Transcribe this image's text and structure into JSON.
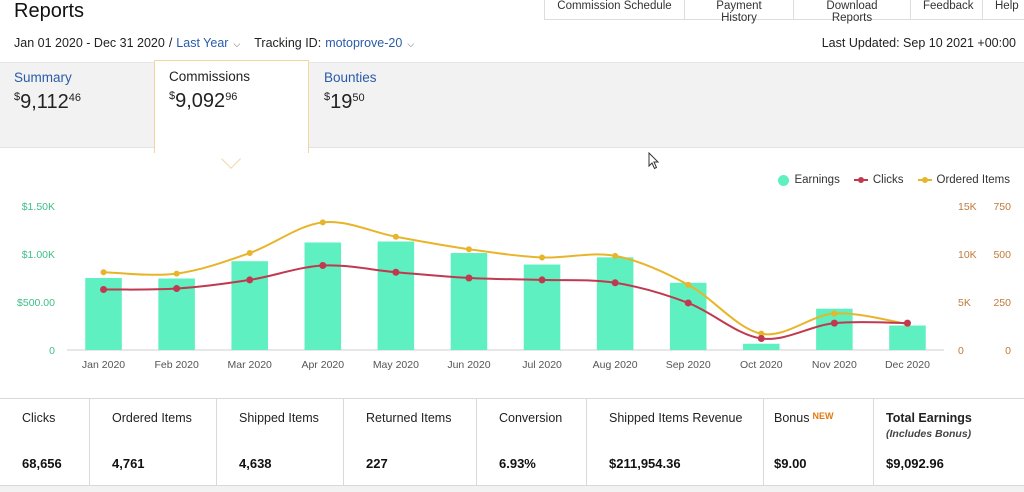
{
  "header": {
    "title": "Reports",
    "nav": [
      "Commission Schedule",
      "Payment History",
      "Download Reports",
      "Feedback",
      "Help"
    ]
  },
  "filters": {
    "date_range": "Jan 01 2020 - Dec 31 2020",
    "period": "Last Year",
    "tracking_label": "Tracking ID:",
    "tracking_id": "motoprove-20",
    "last_updated": "Last Updated: Sep 10 2021 +00:00"
  },
  "tabs": [
    {
      "label": "Summary",
      "whole": "9,112",
      "cents": "46"
    },
    {
      "label": "Commissions",
      "whole": "9,092",
      "cents": "96"
    },
    {
      "label": "Bounties",
      "whole": "19",
      "cents": "50"
    }
  ],
  "legend": {
    "earnings": "Earnings",
    "clicks": "Clicks",
    "ordered": "Ordered Items"
  },
  "colors": {
    "earnings": "#5ef0c0",
    "clicks": "#c0394f",
    "ordered": "#e8b52a",
    "left_axis": "#3fbf86",
    "right_axis": "#c07a3a",
    "link": "#2a5ba8"
  },
  "chart_data": {
    "type": "bar",
    "categories": [
      "Jan 2020",
      "Feb 2020",
      "Mar 2020",
      "Apr 2020",
      "May 2020",
      "Jun 2020",
      "Jul 2020",
      "Aug 2020",
      "Sep 2020",
      "Oct 2020",
      "Nov 2020",
      "Dec 2020"
    ],
    "series": [
      {
        "name": "Earnings",
        "axis": "left",
        "values": [
          750,
          745,
          925,
          1120,
          1130,
          1010,
          890,
          965,
          700,
          65,
          430,
          255
        ]
      },
      {
        "name": "Clicks",
        "axis": "right-clicks",
        "values": [
          6300,
          6400,
          7300,
          8800,
          8100,
          7500,
          7300,
          7000,
          4900,
          1200,
          2800,
          2800
        ]
      },
      {
        "name": "Ordered Items",
        "axis": "right-ordered",
        "values": [
          405,
          398,
          505,
          665,
          590,
          525,
          482,
          490,
          340,
          85,
          190,
          135
        ]
      }
    ],
    "left_axis": {
      "ticks": [
        "0",
        "$500.00",
        "$1.00K",
        "$1.50K"
      ],
      "range": [
        0,
        1500
      ]
    },
    "right_axis_clicks": {
      "ticks": [
        "0",
        "5K",
        "10K",
        "15K"
      ],
      "range": [
        0,
        15000
      ]
    },
    "right_axis_ordered": {
      "ticks": [
        "0",
        "250",
        "500",
        "750"
      ],
      "range": [
        0,
        750
      ]
    },
    "legend_position": "top-right",
    "grid": false
  },
  "stats": [
    {
      "label": "Clicks",
      "value": "68,656"
    },
    {
      "label": "Ordered Items",
      "value": "4,761"
    },
    {
      "label": "Shipped Items",
      "value": "4,638"
    },
    {
      "label": "Returned Items",
      "value": "227"
    },
    {
      "label": "Conversion",
      "value": "6.93%"
    },
    {
      "label": "Shipped Items Revenue",
      "value": "$211,954.36"
    },
    {
      "label": "Bonus",
      "badge": "NEW",
      "value": "$9.00"
    },
    {
      "label": "Total Earnings",
      "sub": "(Includes Bonus)",
      "value": "$9,092.96"
    }
  ]
}
